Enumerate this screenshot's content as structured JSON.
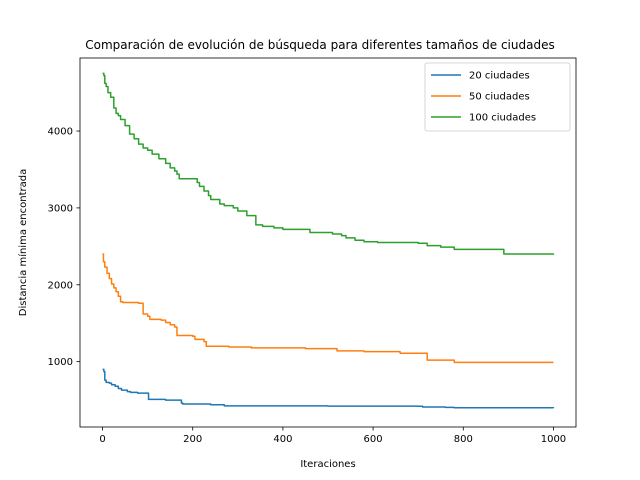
{
  "chart_data": {
    "type": "line",
    "title": "Comparación de evolución de búsqueda para diferentes tamaños de ciudades",
    "xlabel": "Iteraciones",
    "ylabel": "Distancia mínima encontrada",
    "xlim": [
      -50,
      1050
    ],
    "ylim": [
      150,
      4950
    ],
    "xticks": [
      0,
      200,
      400,
      600,
      800,
      1000
    ],
    "yticks": [
      1000,
      2000,
      3000,
      4000
    ],
    "grid": false,
    "legend_position": "top-right",
    "series": [
      {
        "name": "20 ciudades",
        "color": "#1f77b4",
        "x": [
          0,
          3,
          5,
          8,
          15,
          20,
          28,
          35,
          42,
          55,
          62,
          78,
          100,
          102,
          140,
          175,
          178,
          240,
          270,
          500,
          700,
          710,
          760,
          780,
          900,
          1000
        ],
        "y": [
          900,
          870,
          760,
          730,
          720,
          700,
          680,
          650,
          630,
          610,
          600,
          590,
          590,
          510,
          500,
          460,
          450,
          440,
          425,
          422,
          420,
          410,
          405,
          400,
          400,
          395
        ]
      },
      {
        "name": "50 ciudades",
        "color": "#ff7f0e",
        "x": [
          0,
          2,
          5,
          10,
          15,
          20,
          25,
          30,
          35,
          40,
          45,
          80,
          90,
          100,
          105,
          130,
          140,
          150,
          160,
          165,
          200,
          205,
          225,
          230,
          260,
          280,
          330,
          450,
          520,
          580,
          660,
          720,
          780,
          1000
        ],
        "y": [
          2400,
          2300,
          2230,
          2150,
          2080,
          2010,
          1960,
          1910,
          1850,
          1780,
          1770,
          1760,
          1620,
          1590,
          1550,
          1540,
          1510,
          1480,
          1450,
          1340,
          1330,
          1290,
          1260,
          1200,
          1200,
          1190,
          1180,
          1170,
          1140,
          1130,
          1110,
          1020,
          990,
          990
        ]
      },
      {
        "name": "100 ciudades",
        "color": "#2ca02c",
        "x": [
          0,
          3,
          5,
          8,
          12,
          18,
          25,
          30,
          35,
          40,
          50,
          60,
          70,
          80,
          90,
          100,
          110,
          125,
          140,
          150,
          160,
          165,
          170,
          210,
          215,
          225,
          235,
          240,
          260,
          270,
          290,
          300,
          320,
          340,
          355,
          380,
          400,
          460,
          510,
          530,
          540,
          560,
          580,
          610,
          700,
          720,
          750,
          780,
          880,
          890,
          1000
        ],
        "y": [
          4750,
          4720,
          4620,
          4580,
          4500,
          4440,
          4300,
          4230,
          4200,
          4150,
          4070,
          3960,
          3900,
          3830,
          3780,
          3750,
          3700,
          3640,
          3580,
          3520,
          3480,
          3440,
          3380,
          3330,
          3280,
          3220,
          3160,
          3110,
          3050,
          3030,
          3000,
          2960,
          2900,
          2780,
          2760,
          2740,
          2720,
          2680,
          2660,
          2640,
          2610,
          2580,
          2560,
          2550,
          2540,
          2510,
          2490,
          2460,
          2460,
          2400,
          2390
        ]
      }
    ]
  }
}
